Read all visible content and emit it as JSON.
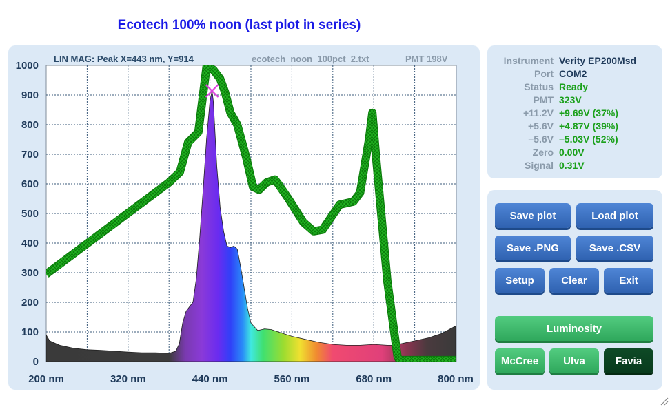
{
  "window": {
    "title": "Ecotech 100% noon (last plot in series)"
  },
  "plot": {
    "header_left": "LIN MAG: Peak X=443 nm, Y=914",
    "header_file": "ecotech_noon_100pct_2.txt",
    "header_pmt": "PMT 198V",
    "marker_color": "#e040e0",
    "overlay_color": "#1aaa1a"
  },
  "chart_data": {
    "type": "area",
    "x_unit": "nm",
    "xlim": [
      200,
      800
    ],
    "ylim": [
      0,
      1000
    ],
    "x_ticks": [
      "200 nm",
      "320 nm",
      "440 nm",
      "560 nm",
      "680 nm",
      "800 nm"
    ],
    "y_ticks": [
      "1000",
      "900",
      "800",
      "700",
      "600",
      "500",
      "400",
      "300",
      "200",
      "100",
      "0"
    ],
    "grid": true,
    "peak": {
      "x": 443,
      "y": 914
    },
    "series": [
      {
        "x": [
          200,
          205,
          210,
          220,
          240,
          260,
          280,
          300,
          320,
          340,
          360,
          380,
          390,
          395,
          400,
          405,
          410,
          415,
          420,
          425,
          430,
          435,
          440,
          443,
          445,
          450,
          455,
          460,
          465,
          470,
          475,
          480,
          485,
          490,
          495,
          500,
          510,
          520,
          530,
          540,
          560,
          580,
          600,
          620,
          640,
          660,
          680,
          700,
          710,
          720,
          740,
          760,
          780,
          800
        ],
        "values": [
          90,
          70,
          65,
          55,
          45,
          40,
          38,
          35,
          32,
          30,
          30,
          28,
          35,
          60,
          130,
          170,
          185,
          200,
          280,
          420,
          580,
          750,
          880,
          914,
          880,
          660,
          520,
          440,
          390,
          385,
          390,
          380,
          320,
          250,
          180,
          130,
          105,
          110,
          108,
          100,
          85,
          75,
          65,
          58,
          55,
          55,
          58,
          55,
          55,
          60,
          70,
          80,
          95,
          120
        ]
      },
      {
        "x": [
          200,
          380,
          396,
          408,
          423,
          435,
          445,
          455,
          462,
          470,
          480,
          493,
          503,
          512,
          523,
          535,
          540,
          555,
          577,
          592,
          605,
          630,
          650,
          660,
          673,
          678,
          683,
          700,
          715,
          718,
          800
        ],
        "values": [
          295,
          605,
          640,
          740,
          775,
          995,
          985,
          955,
          910,
          840,
          800,
          690,
          590,
          580,
          605,
          615,
          600,
          550,
          470,
          440,
          445,
          530,
          540,
          570,
          750,
          840,
          700,
          270,
          15,
          5,
          5
        ]
      }
    ]
  },
  "instrument": {
    "rows": [
      {
        "label": "Instrument",
        "value": "Verity EP200Msd",
        "color": "dark"
      },
      {
        "label": "Port",
        "value": "COM2",
        "color": "dark"
      },
      {
        "label": "Status",
        "value": "Ready",
        "color": "green"
      },
      {
        "label": "PMT",
        "value": "323V",
        "color": "green"
      },
      {
        "label": "+11.2V",
        "value": "+9.69V (37%)",
        "color": "green"
      },
      {
        "label": "+5.6V",
        "value": "+4.87V (39%)",
        "color": "green"
      },
      {
        "label": "–5.6V",
        "value": "–5.03V (52%)",
        "color": "green"
      },
      {
        "label": "Zero",
        "value": "0.00V",
        "color": "green"
      },
      {
        "label": "Signal",
        "value": "0.31V",
        "color": "green"
      }
    ]
  },
  "buttons": {
    "save_plot": "Save plot",
    "load_plot": "Load plot",
    "save_png": "Save .PNG",
    "save_csv": "Save .CSV",
    "setup": "Setup",
    "clear": "Clear",
    "exit": "Exit",
    "luminosity": "Luminosity",
    "mccree": "McCree",
    "ulva": "Ulva",
    "favia": "Favia"
  }
}
